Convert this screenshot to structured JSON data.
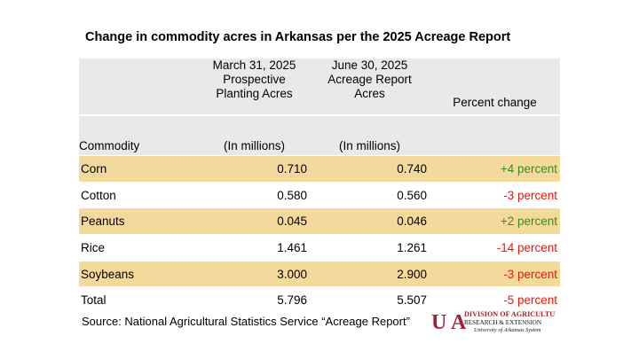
{
  "title": "Change in commodity acres in Arkansas per the 2025 Acreage Report",
  "header": {
    "col2_lines": [
      "March 31, 2025",
      "Prospective",
      "Planting Acres"
    ],
    "col3_lines": [
      "June 30, 2025",
      "Acreage Report",
      "Acres"
    ],
    "col4": "Percent change",
    "commodity": "Commodity",
    "col2_unit": "(In millions)",
    "col3_unit": "(In millions)"
  },
  "rows": [
    {
      "commodity": "Corn",
      "march": "0.710",
      "june": "0.740",
      "change": "+4 percent"
    },
    {
      "commodity": "Cotton",
      "march": "0.580",
      "june": "0.560",
      "change": "-3 percent"
    },
    {
      "commodity": "Peanuts",
      "march": "0.045",
      "june": "0.046",
      "change": "+2 percent"
    },
    {
      "commodity": "Rice",
      "march": "1.461",
      "june": "1.261",
      "change": "-14 percent"
    },
    {
      "commodity": "Soybeans",
      "march": "3.000",
      "june": "2.900",
      "change": "-3 percent"
    },
    {
      "commodity": "Total",
      "march": "5.796",
      "june": "5.507",
      "change": "-5 percent"
    }
  ],
  "source": "Source: National Agricultural Statistics Service “Acreage Report”",
  "logo": {
    "mark": "U A",
    "line1": "DIVISION OF AGRICULTURE",
    "line2": "RESEARCH & EXTENSION",
    "line3": "University of Arkansas System"
  },
  "colors": {
    "positive": "#3f8a1f",
    "negative": "#e3170a",
    "row_highlight": "#f4d99c",
    "header_bg": "#e9e9e9",
    "logo_red": "#9d2235"
  }
}
